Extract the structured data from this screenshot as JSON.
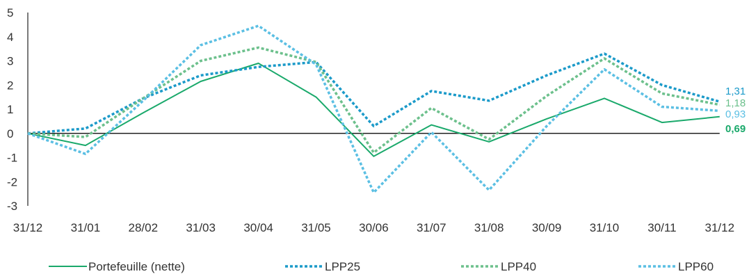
{
  "chart_data": {
    "type": "line",
    "categories": [
      "31/12",
      "31/01",
      "28/02",
      "31/03",
      "30/04",
      "31/05",
      "30/06",
      "31/07",
      "31/08",
      "30/09",
      "31/10",
      "30/11",
      "31/12"
    ],
    "ylim": [
      -3,
      5
    ],
    "yticks": [
      5,
      4,
      3,
      2,
      1,
      0,
      -1,
      -2,
      -3
    ],
    "grid": false,
    "legend_position": "bottom",
    "series": [
      {
        "name": "Portefeuille (nette)",
        "color": "#1aa96b",
        "style": "solid",
        "values": [
          0,
          -0.5,
          0.85,
          2.15,
          2.9,
          1.5,
          -0.95,
          0.35,
          -0.35,
          0.6,
          1.45,
          0.45,
          0.69
        ],
        "end_label": "0,69"
      },
      {
        "name": "LPP25",
        "color": "#1b9ac9",
        "style": "dotted",
        "values": [
          0,
          0.2,
          1.45,
          2.4,
          2.75,
          2.95,
          0.3,
          1.75,
          1.35,
          2.4,
          3.3,
          2.0,
          1.31
        ],
        "end_label": "1,31"
      },
      {
        "name": "LPP40",
        "color": "#6cc08c",
        "style": "dotted",
        "values": [
          0,
          -0.15,
          1.45,
          3.0,
          3.55,
          2.95,
          -0.8,
          1.05,
          -0.25,
          1.55,
          3.1,
          1.65,
          1.18
        ],
        "end_label": "1,18"
      },
      {
        "name": "LPP60",
        "color": "#5bbfe3",
        "style": "dotted",
        "values": [
          0,
          -0.85,
          1.35,
          3.65,
          4.45,
          2.85,
          -2.45,
          0.05,
          -2.35,
          0.3,
          2.65,
          1.1,
          0.93
        ],
        "end_label": "0,93"
      }
    ]
  }
}
